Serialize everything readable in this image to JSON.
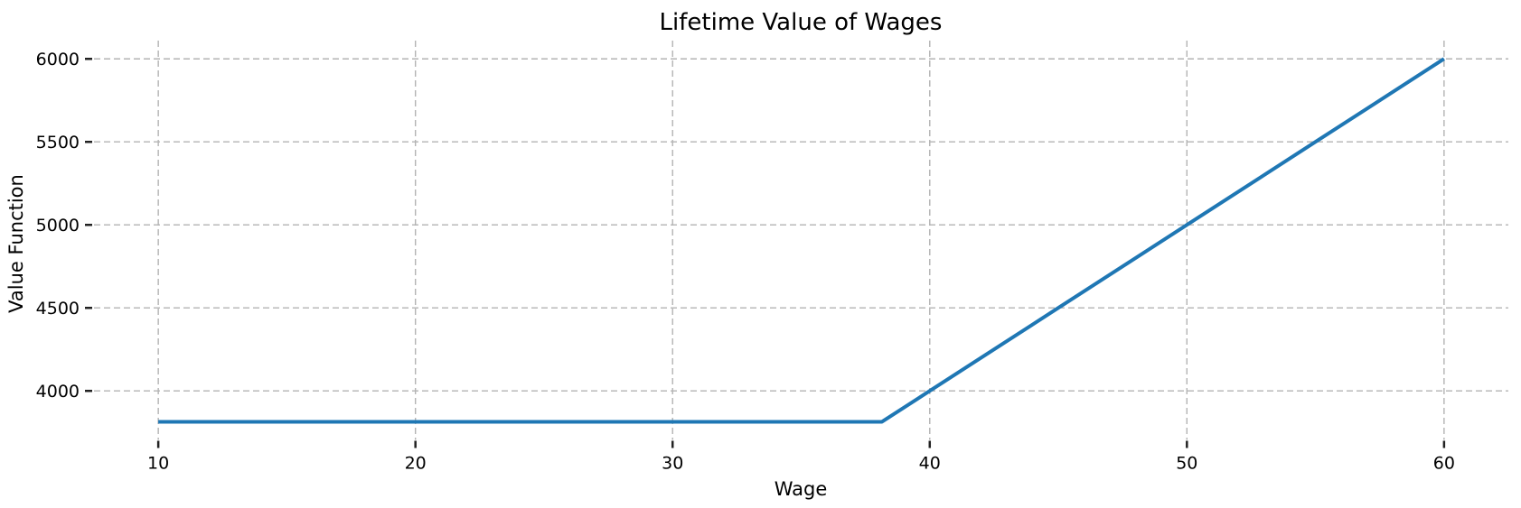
{
  "chart_data": {
    "type": "line",
    "title": "Lifetime Value of Wages",
    "xlabel": "Wage",
    "ylabel": "Value Function",
    "xlim": [
      7.5,
      62.5
    ],
    "ylim": [
      3705,
      6110
    ],
    "xticks": [
      10,
      20,
      30,
      40,
      50,
      60
    ],
    "yticks": [
      4000,
      4500,
      5000,
      5500,
      6000
    ],
    "grid": true,
    "grid_style": "dashed",
    "legend_position": "none",
    "series": [
      {
        "name": "Value Function",
        "color": "#1f77b4",
        "line_width": 4,
        "x": [
          10,
          15,
          20,
          25,
          30,
          35,
          38.14,
          40,
          45,
          50,
          55,
          60
        ],
        "y": [
          3814,
          3814,
          3814,
          3814,
          3814,
          3814,
          3814,
          4000,
          4500,
          5000,
          5500,
          6000
        ]
      }
    ],
    "colors": {
      "line": "#1f77b4",
      "grid": "#b3b3b3",
      "tick": "#222222",
      "text": "#000000",
      "background": "#ffffff"
    }
  }
}
